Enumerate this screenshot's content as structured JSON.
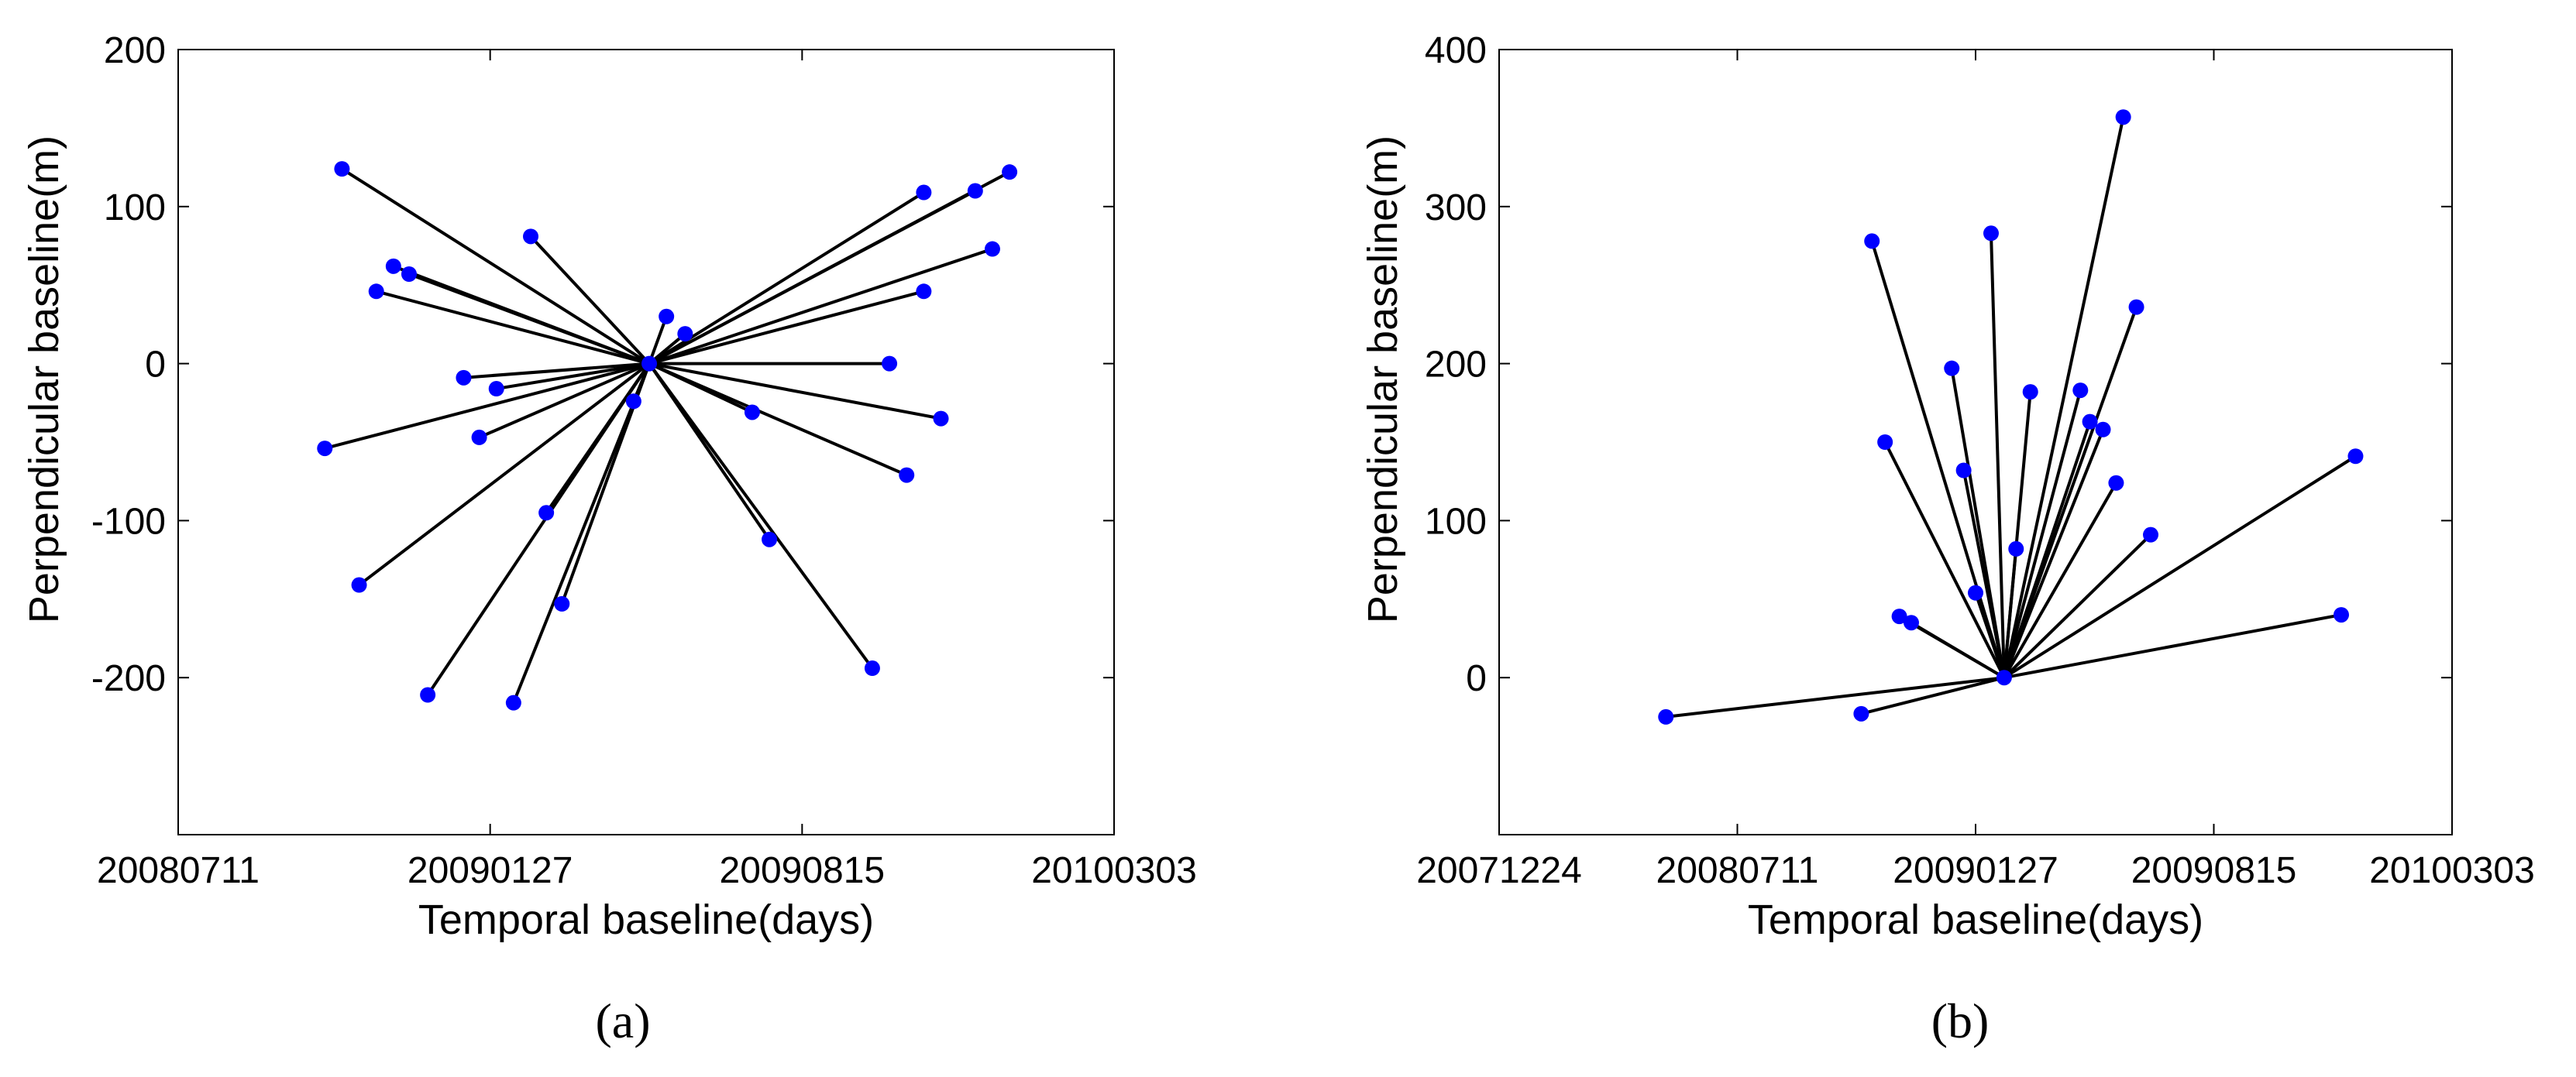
{
  "colors": {
    "point": "#0000ff",
    "line": "#000000"
  },
  "chart_data": [
    {
      "type": "scatter",
      "panel_label": "(a)",
      "xlabel": "Temporal baseline(days)",
      "ylabel": "Perpendicular baseline(m)",
      "x_ticks": [
        "20080711",
        "20090127",
        "20090815",
        "20100303"
      ],
      "x_tick_positions": [
        0,
        200,
        400,
        600
      ],
      "xlim": [
        0,
        600
      ],
      "y_ticks": [
        "200",
        "100",
        "0",
        "-100",
        "-200"
      ],
      "y_tick_values": [
        200,
        100,
        0,
        -100,
        -200
      ],
      "ylim": [
        -300,
        200
      ],
      "master": {
        "x": 302,
        "y": 0
      },
      "points": [
        {
          "x": 105,
          "y": 124
        },
        {
          "x": 138,
          "y": 62
        },
        {
          "x": 148,
          "y": 57
        },
        {
          "x": 127,
          "y": 46
        },
        {
          "x": 226,
          "y": 81
        },
        {
          "x": 313,
          "y": 30
        },
        {
          "x": 325,
          "y": 19
        },
        {
          "x": 183,
          "y": -9
        },
        {
          "x": 204,
          "y": -16
        },
        {
          "x": 193,
          "y": -47
        },
        {
          "x": 94,
          "y": -54
        },
        {
          "x": 116,
          "y": -141
        },
        {
          "x": 160,
          "y": -211
        },
        {
          "x": 215,
          "y": -216
        },
        {
          "x": 236,
          "y": -95
        },
        {
          "x": 246,
          "y": -153
        },
        {
          "x": 292,
          "y": -24
        },
        {
          "x": 368,
          "y": -31
        },
        {
          "x": 379,
          "y": -112
        },
        {
          "x": 445,
          "y": -194
        },
        {
          "x": 456,
          "y": 0
        },
        {
          "x": 467,
          "y": -71
        },
        {
          "x": 489,
          "y": -35
        },
        {
          "x": 478,
          "y": 46
        },
        {
          "x": 522,
          "y": 73
        },
        {
          "x": 511,
          "y": 110
        },
        {
          "x": 533,
          "y": 122
        },
        {
          "x": 478,
          "y": 109
        }
      ]
    },
    {
      "type": "scatter",
      "panel_label": "(b)",
      "xlabel": "Temporal baseline(days)",
      "ylabel": "Perpendicular baseline(m)",
      "x_ticks": [
        "20071224",
        "20080711",
        "20090127",
        "20090815",
        "20100303"
      ],
      "x_tick_positions": [
        0,
        200,
        400,
        600,
        800
      ],
      "xlim": [
        0,
        800
      ],
      "y_ticks": [
        "400",
        "300",
        "200",
        "100",
        "0"
      ],
      "y_tick_values": [
        400,
        300,
        200,
        100,
        0
      ],
      "ylim": [
        -100,
        400
      ],
      "master": {
        "x": 424,
        "y": 0
      },
      "points": [
        {
          "x": 140,
          "y": -25
        },
        {
          "x": 304,
          "y": -23
        },
        {
          "x": 313,
          "y": 278
        },
        {
          "x": 324,
          "y": 150
        },
        {
          "x": 336,
          "y": 39
        },
        {
          "x": 346,
          "y": 35
        },
        {
          "x": 380,
          "y": 197
        },
        {
          "x": 390,
          "y": 132
        },
        {
          "x": 400,
          "y": 54
        },
        {
          "x": 413,
          "y": 283
        },
        {
          "x": 434,
          "y": 82
        },
        {
          "x": 446,
          "y": 182
        },
        {
          "x": 488,
          "y": 183
        },
        {
          "x": 496,
          "y": 163
        },
        {
          "x": 507,
          "y": 158
        },
        {
          "x": 518,
          "y": 124
        },
        {
          "x": 535,
          "y": 236
        },
        {
          "x": 547,
          "y": 91
        },
        {
          "x": 524,
          "y": 357
        },
        {
          "x": 707,
          "y": 40
        },
        {
          "x": 719,
          "y": 141
        }
      ]
    }
  ]
}
